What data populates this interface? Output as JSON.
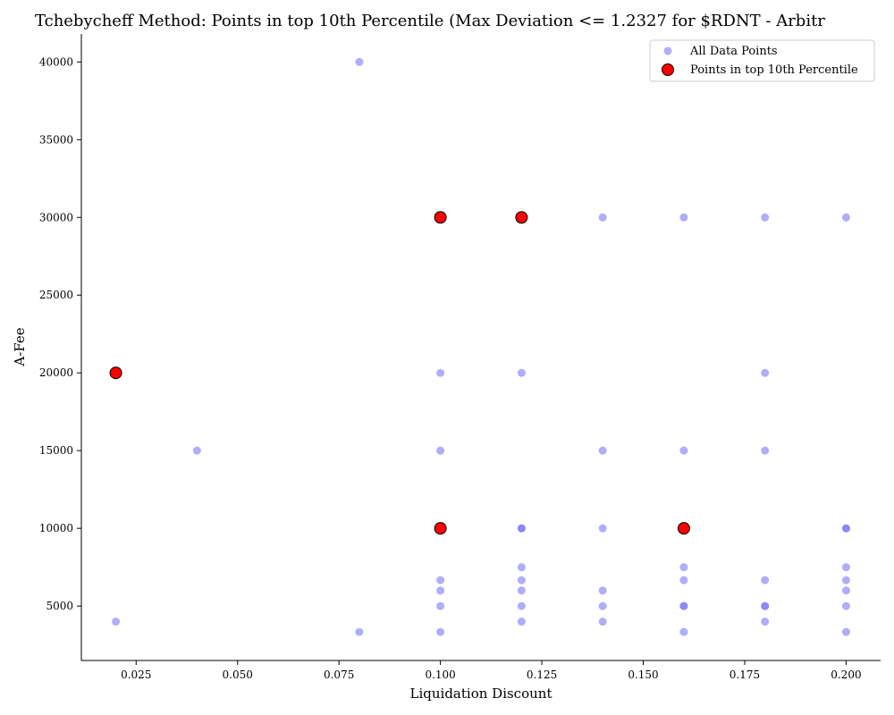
{
  "chart_data": {
    "type": "scatter",
    "title": "Tchebycheff Method: Points in top 10th Percentile (Max Deviation <= 1.2327 for $RDNT - Arbitr",
    "xlabel": "Liquidation Discount",
    "ylabel": "A-Fee",
    "xlim": [
      0.0115,
      0.2085
    ],
    "ylim": [
      1500,
      41800
    ],
    "x_ticks": [
      0.025,
      0.05,
      0.075,
      0.1,
      0.125,
      0.15,
      0.175,
      0.2
    ],
    "x_tick_labels": [
      "0.025",
      "0.050",
      "0.075",
      "0.100",
      "0.125",
      "0.150",
      "0.175",
      "0.200"
    ],
    "y_ticks": [
      5000,
      10000,
      15000,
      20000,
      25000,
      30000,
      35000,
      40000
    ],
    "y_tick_labels": [
      "5000",
      "10000",
      "15000",
      "20000",
      "25000",
      "30000",
      "35000",
      "40000"
    ],
    "grid": false,
    "legend_position": "top-right",
    "series": [
      {
        "name": "All Data Points",
        "color": "#6b6bf5",
        "points": [
          [
            0.08,
            40000
          ],
          [
            0.1,
            30000
          ],
          [
            0.12,
            30000
          ],
          [
            0.14,
            30000
          ],
          [
            0.16,
            30000
          ],
          [
            0.18,
            30000
          ],
          [
            0.2,
            30000
          ],
          [
            0.02,
            20000
          ],
          [
            0.1,
            20000
          ],
          [
            0.12,
            20000
          ],
          [
            0.18,
            20000
          ],
          [
            0.04,
            15000
          ],
          [
            0.1,
            15000
          ],
          [
            0.14,
            15000
          ],
          [
            0.16,
            15000
          ],
          [
            0.18,
            15000
          ],
          [
            0.1,
            10000
          ],
          [
            0.12,
            10000
          ],
          [
            0.12,
            10000
          ],
          [
            0.14,
            10000
          ],
          [
            0.16,
            10000
          ],
          [
            0.2,
            10000
          ],
          [
            0.2,
            10000
          ],
          [
            0.12,
            7500
          ],
          [
            0.16,
            7500
          ],
          [
            0.2,
            7500
          ],
          [
            0.1,
            6667
          ],
          [
            0.12,
            6667
          ],
          [
            0.16,
            6667
          ],
          [
            0.18,
            6667
          ],
          [
            0.2,
            6667
          ],
          [
            0.1,
            6000
          ],
          [
            0.12,
            6000
          ],
          [
            0.14,
            6000
          ],
          [
            0.2,
            6000
          ],
          [
            0.1,
            5000
          ],
          [
            0.12,
            5000
          ],
          [
            0.14,
            5000
          ],
          [
            0.16,
            5000
          ],
          [
            0.16,
            5000
          ],
          [
            0.18,
            5000
          ],
          [
            0.18,
            5000
          ],
          [
            0.2,
            5000
          ],
          [
            0.02,
            4000
          ],
          [
            0.12,
            4000
          ],
          [
            0.14,
            4000
          ],
          [
            0.18,
            4000
          ],
          [
            0.08,
            3333
          ],
          [
            0.1,
            3333
          ],
          [
            0.16,
            3333
          ],
          [
            0.2,
            3333
          ]
        ]
      },
      {
        "name": "Points in top 10th Percentile",
        "color": "#ff0000",
        "edge_color": "#000000",
        "points": [
          [
            0.1,
            30000
          ],
          [
            0.12,
            30000
          ],
          [
            0.02,
            20000
          ],
          [
            0.1,
            10000
          ],
          [
            0.16,
            10000
          ]
        ]
      }
    ]
  }
}
